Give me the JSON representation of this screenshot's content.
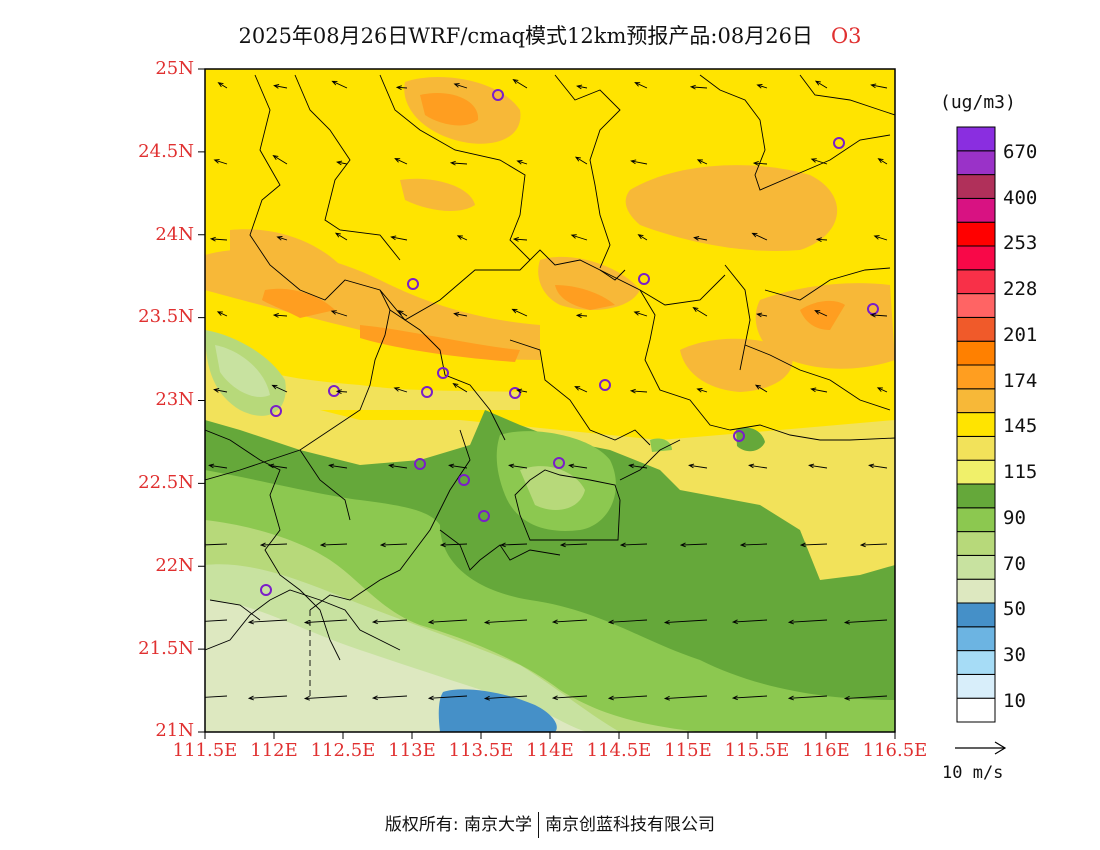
{
  "title": {
    "main": "2025年08月26日WRF/cmaq模式12km预报产品:08月26日",
    "species": "O3"
  },
  "axes": {
    "lat_labels": [
      "25N",
      "24.5N",
      "24N",
      "23.5N",
      "23N",
      "22.5N",
      "22N",
      "21.5N",
      "21N"
    ],
    "lon_labels": [
      "111.5E",
      "112E",
      "112.5E",
      "113E",
      "113.5E",
      "114E",
      "114.5E",
      "115E",
      "115.5E",
      "116E",
      "116.5E"
    ]
  },
  "colorbar": {
    "unit": "(ug/m3)",
    "colors": [
      "#ffffff",
      "#d8eefa",
      "#a6dcf6",
      "#6cb4e2",
      "#4590c8",
      "#dde8c0",
      "#c8e2a0",
      "#b7d97a",
      "#8cc850",
      "#65a83a",
      "#f0f06a",
      "#f2e25a",
      "#ffe400",
      "#f7b838",
      "#ff9e20",
      "#ff8000",
      "#f05a2a",
      "#ff6464",
      "#f83048",
      "#f80848",
      "#ff0000",
      "#d81282",
      "#b0305a",
      "#9a32c8",
      "#8a2ee0"
    ],
    "labels": [
      "10",
      "30",
      "50",
      "70",
      "90",
      "115",
      "145",
      "174",
      "201",
      "228",
      "253",
      "400",
      "670"
    ]
  },
  "reference_vector": "10 m/s",
  "footer": {
    "left": "版权所有: 南京大学",
    "right": "南京创蓝科技有限公司"
  }
}
